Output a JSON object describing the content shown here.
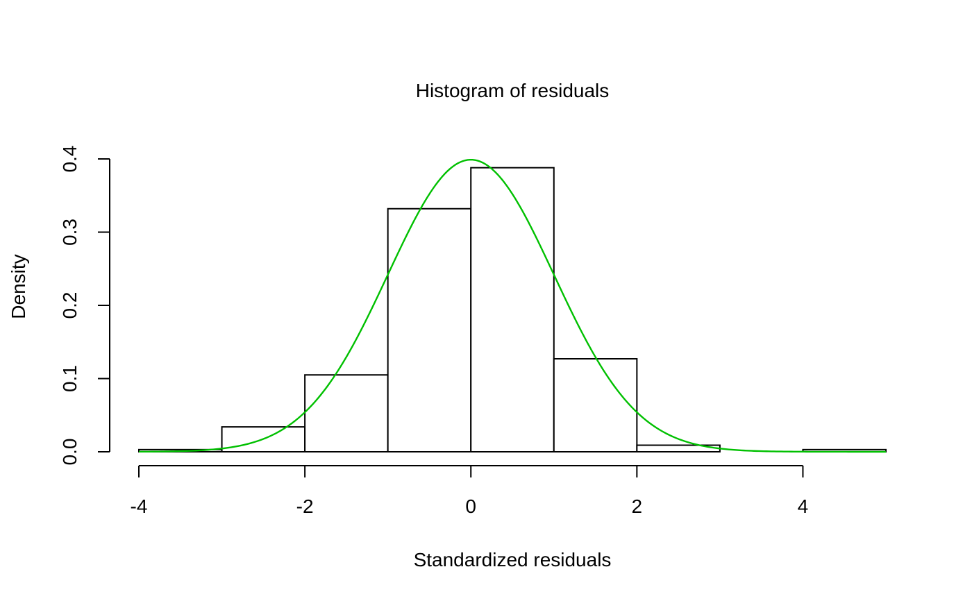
{
  "chart_data": {
    "type": "bar",
    "title": "Histogram of residuals",
    "xlabel": "Standardized residuals",
    "ylabel": "Density",
    "xlim": [
      -4,
      5
    ],
    "ylim": [
      0,
      0.4
    ],
    "x_ticks": [
      -4,
      -2,
      0,
      2,
      4
    ],
    "x_tick_labels": [
      "-4",
      "-2",
      "0",
      "2",
      "4"
    ],
    "y_ticks": [
      0.0,
      0.1,
      0.2,
      0.3,
      0.4
    ],
    "y_tick_labels": [
      "0.0",
      "0.1",
      "0.2",
      "0.3",
      "0.4"
    ],
    "grid": false,
    "bins": [
      {
        "start": -4,
        "end": -3,
        "density": 0.003
      },
      {
        "start": -3,
        "end": -2,
        "density": 0.034
      },
      {
        "start": -2,
        "end": -1,
        "density": 0.105
      },
      {
        "start": -1,
        "end": 0,
        "density": 0.332
      },
      {
        "start": 0,
        "end": 1,
        "density": 0.388
      },
      {
        "start": 1,
        "end": 2,
        "density": 0.127
      },
      {
        "start": 2,
        "end": 3,
        "density": 0.009
      },
      {
        "start": 3,
        "end": 4,
        "density": 0.0
      },
      {
        "start": 4,
        "end": 5,
        "density": 0.003
      }
    ],
    "curve": {
      "type": "normal-density",
      "mean": 0,
      "sd": 1,
      "x_range": [
        -4,
        5
      ],
      "color": "#00C000"
    }
  }
}
